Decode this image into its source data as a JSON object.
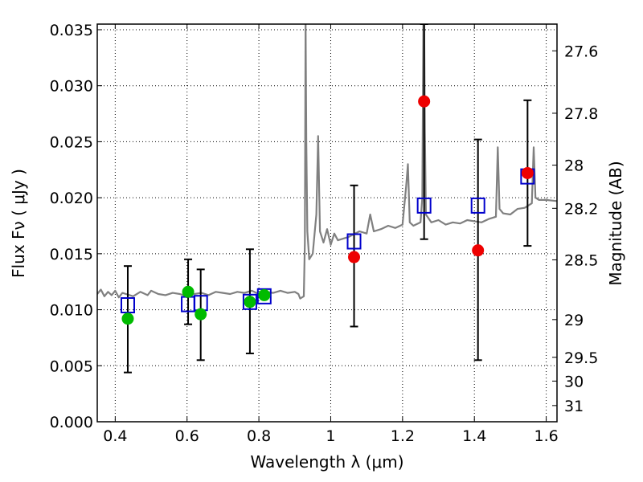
{
  "chart_data": {
    "type": "scatter",
    "xlabel": "Wavelength  λ (μm)",
    "ylabel_left": "Flux  Fν  ( μJy )",
    "ylabel_right": "Magnitude (AB)",
    "xlim": [
      0.35,
      1.63
    ],
    "ylim": [
      0.0,
      0.0355
    ],
    "grid": true,
    "x_ticks": [
      {
        "value": 0.4,
        "label": "0.4"
      },
      {
        "value": 0.6,
        "label": "0.6"
      },
      {
        "value": 0.8,
        "label": "0.8"
      },
      {
        "value": 1.0,
        "label": "1"
      },
      {
        "value": 1.2,
        "label": "1.2"
      },
      {
        "value": 1.4,
        "label": "1.4"
      },
      {
        "value": 1.6,
        "label": "1.6"
      }
    ],
    "y_ticks": [
      {
        "value": 0.0,
        "label": "0.000"
      },
      {
        "value": 0.005,
        "label": "0.005"
      },
      {
        "value": 0.01,
        "label": "0.010"
      },
      {
        "value": 0.015,
        "label": "0.015"
      },
      {
        "value": 0.02,
        "label": "0.020"
      },
      {
        "value": 0.025,
        "label": "0.025"
      },
      {
        "value": 0.03,
        "label": "0.030"
      },
      {
        "value": 0.035,
        "label": "0.035"
      }
    ],
    "right_ticks": [
      {
        "mag": 27.6,
        "label": "27.6"
      },
      {
        "mag": 27.8,
        "label": "27.8"
      },
      {
        "mag": 28.0,
        "label": "28"
      },
      {
        "mag": 28.2,
        "label": "28.2"
      },
      {
        "mag": 28.5,
        "label": "28.5"
      },
      {
        "mag": 29.0,
        "label": "29"
      },
      {
        "mag": 29.5,
        "label": "29.5"
      },
      {
        "mag": 30.0,
        "label": "30"
      },
      {
        "mag": 31.0,
        "label": "31"
      }
    ],
    "series": [
      {
        "name": "model spectrum",
        "kind": "line",
        "color": "#808080",
        "x": [
          0.35,
          0.36,
          0.37,
          0.38,
          0.39,
          0.4,
          0.41,
          0.42,
          0.43,
          0.45,
          0.47,
          0.49,
          0.5,
          0.52,
          0.54,
          0.56,
          0.58,
          0.59,
          0.6,
          0.62,
          0.64,
          0.66,
          0.68,
          0.7,
          0.72,
          0.74,
          0.76,
          0.78,
          0.8,
          0.82,
          0.84,
          0.86,
          0.88,
          0.9,
          0.91,
          0.915,
          0.925,
          0.928,
          0.93,
          0.932,
          0.935,
          0.94,
          0.95,
          0.96,
          0.965,
          0.97,
          0.98,
          0.99,
          1.0,
          1.01,
          1.02,
          1.05,
          1.08,
          1.1,
          1.11,
          1.12,
          1.14,
          1.16,
          1.18,
          1.2,
          1.21,
          1.215,
          1.22,
          1.23,
          1.25,
          1.255,
          1.258,
          1.26,
          1.262,
          1.265,
          1.28,
          1.3,
          1.32,
          1.34,
          1.36,
          1.38,
          1.4,
          1.42,
          1.44,
          1.46,
          1.465,
          1.47,
          1.48,
          1.5,
          1.52,
          1.54,
          1.56,
          1.565,
          1.57,
          1.58,
          1.6,
          1.63
        ],
        "y": [
          0.0114,
          0.0118,
          0.0112,
          0.0116,
          0.0113,
          0.0117,
          0.0111,
          0.0115,
          0.0114,
          0.0112,
          0.0116,
          0.0113,
          0.0117,
          0.0114,
          0.0113,
          0.0115,
          0.0114,
          0.0113,
          0.0116,
          0.0114,
          0.0115,
          0.0113,
          0.0116,
          0.0115,
          0.0114,
          0.0116,
          0.0115,
          0.0117,
          0.0114,
          0.0116,
          0.0115,
          0.0117,
          0.0115,
          0.0116,
          0.0114,
          0.011,
          0.0112,
          0.016,
          0.036,
          0.025,
          0.017,
          0.0145,
          0.015,
          0.0185,
          0.0255,
          0.017,
          0.016,
          0.0172,
          0.0158,
          0.0168,
          0.0162,
          0.0165,
          0.017,
          0.0168,
          0.0185,
          0.017,
          0.0172,
          0.0175,
          0.0173,
          0.0176,
          0.021,
          0.023,
          0.0178,
          0.0175,
          0.0178,
          0.02,
          0.036,
          0.036,
          0.026,
          0.0185,
          0.0178,
          0.018,
          0.0176,
          0.0178,
          0.0177,
          0.018,
          0.0179,
          0.0178,
          0.0181,
          0.0183,
          0.0245,
          0.019,
          0.0186,
          0.0185,
          0.019,
          0.0191,
          0.0195,
          0.0245,
          0.02,
          0.0198,
          0.0198,
          0.0197
        ]
      },
      {
        "name": "green points",
        "kind": "circle",
        "color": "#00bb00",
        "x": [
          0.435,
          0.603,
          0.638,
          0.775,
          0.815
        ],
        "y": [
          0.0092,
          0.0116,
          0.0096,
          0.0107,
          0.0113
        ]
      },
      {
        "name": "red points",
        "kind": "circle",
        "color": "#ee0000",
        "x": [
          1.065,
          1.26,
          1.41,
          1.548
        ],
        "y": [
          0.0147,
          0.0286,
          0.0153,
          0.0222
        ]
      },
      {
        "name": "blue squares",
        "kind": "square",
        "color": "#0000cc",
        "x": [
          0.435,
          0.603,
          0.638,
          0.775,
          0.815,
          1.065,
          1.26,
          1.41,
          1.548
        ],
        "y": [
          0.0104,
          0.0105,
          0.0106,
          0.0107,
          0.0112,
          0.0161,
          0.0193,
          0.0193,
          0.0219
        ]
      },
      {
        "name": "error bars",
        "kind": "errorbar",
        "color": "#000000",
        "x": [
          0.435,
          0.603,
          0.638,
          0.775,
          1.065,
          1.26,
          1.41,
          1.548
        ],
        "ylow": [
          0.0044,
          0.0087,
          0.0055,
          0.0061,
          0.0085,
          0.0163,
          0.0055,
          0.0157
        ],
        "yhigh": [
          0.0139,
          0.0145,
          0.0136,
          0.0154,
          0.0211,
          0.0355,
          0.0252,
          0.0287
        ]
      }
    ]
  }
}
